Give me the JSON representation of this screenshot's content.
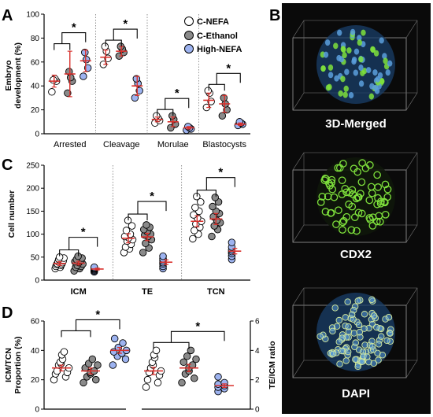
{
  "colors": {
    "c_nefa": "#ffffff",
    "c_ethanol": "#8a8a8a",
    "high_nefa": "#9db3f0",
    "error_bar": "#d9302c",
    "axis": "#000000",
    "image_bg": "#0a0a0a",
    "dapi": "#5b9fdc",
    "cdx2": "#7ee03c"
  },
  "legend": [
    "C-NEFA",
    "C-Ethanol",
    "High-NEFA"
  ],
  "chart_data": [
    {
      "panel": "A",
      "type": "scatter",
      "ylabel": "Embryo development (%)",
      "ylim": [
        0,
        100
      ],
      "yticks": [
        0,
        20,
        40,
        60,
        80,
        100
      ],
      "categories": [
        "Arrested",
        "Cleavage",
        "Morulae",
        "Blastocysts"
      ],
      "series": [
        {
          "name": "C-NEFA",
          "points": [
            [
              35,
              44,
              46,
              45
            ],
            [
              58,
              63,
              69,
              73
            ],
            [
              9,
              11,
              13,
              15
            ],
            [
              22,
              27,
              34,
              36
            ]
          ],
          "mean": [
            44,
            64,
            12,
            28
          ],
          "sd": [
            5,
            6,
            2,
            6
          ]
        },
        {
          "name": "C-Ethanol",
          "points": [
            [
              34,
              44,
              47,
              52
            ],
            [
              65,
              68,
              71,
              73
            ],
            [
              5,
              8,
              12,
              15
            ],
            [
              15,
              20,
              25,
              30
            ]
          ],
          "mean": [
            50,
            69,
            10,
            25
          ],
          "sd": [
            19,
            4,
            4,
            7
          ]
        },
        {
          "name": "High-NEFA",
          "points": [
            [
              48,
              55,
              62,
              68
            ],
            [
              30,
              36,
              42,
              46
            ],
            [
              3,
              4,
              5,
              6
            ],
            [
              7,
              8,
              9,
              10
            ]
          ],
          "mean": [
            61,
            40,
            5,
            8
          ],
          "sd": [
            9,
            8,
            1,
            1
          ]
        }
      ],
      "significance": [
        "*",
        "*",
        "*",
        "*"
      ]
    },
    {
      "panel": "C",
      "type": "scatter",
      "ylabel": "Cell number",
      "ylim": [
        0,
        250
      ],
      "yticks": [
        0,
        50,
        100,
        150,
        200,
        250
      ],
      "categories": [
        "ICM",
        "TE",
        "TCN"
      ],
      "series": [
        {
          "name": "C-NEFA",
          "points": [
            [
              25,
              28,
              30,
              32,
              34,
              35,
              36,
              38,
              40,
              42,
              45,
              48,
              50
            ],
            [
              60,
              68,
              72,
              78,
              85,
              88,
              92,
              95,
              100,
              108,
              118,
              130
            ],
            [
              90,
              100,
              108,
              115,
              122,
              128,
              135,
              142,
              150,
              158,
              170,
              182
            ]
          ],
          "mean": [
            36,
            91,
            128
          ],
          "sd": [
            4,
            10,
            12
          ]
        },
        {
          "name": "C-Ethanol",
          "points": [
            [
              20,
              25,
              28,
              30,
              32,
              35,
              38,
              40,
              42,
              45,
              48,
              52
            ],
            [
              60,
              70,
              80,
              88,
              95,
              98,
              100,
              105,
              110,
              115,
              120
            ],
            [
              95,
              110,
              118,
              125,
              130,
              138,
              145,
              150,
              160,
              170,
              180
            ]
          ],
          "mean": [
            37,
            94,
            133
          ],
          "sd": [
            4,
            8,
            12
          ]
        },
        {
          "name": "High-NEFA",
          "points": [
            [
              18,
              20,
              22,
              24,
              25,
              26,
              28
            ],
            [
              25,
              30,
              35,
              38,
              42,
              46,
              52
            ],
            [
              45,
              52,
              58,
              62,
              66,
              72,
              82
            ]
          ],
          "mean": [
            24,
            39,
            63
          ],
          "sd": [
            2,
            5,
            6
          ]
        }
      ],
      "significance": [
        "*",
        "*",
        "*"
      ]
    },
    {
      "panel": "D",
      "type": "scatter",
      "ylabel": "ICM/TCN Proportion (%)",
      "ylabel_right": "TE/ICM ratio",
      "ylim": [
        0,
        60
      ],
      "yticks": [
        0,
        20,
        40,
        60
      ],
      "ylim_right": [
        0,
        6
      ],
      "yticks_right": [
        0,
        2,
        4,
        6
      ],
      "groups": [
        {
          "axis": "left",
          "series": [
            {
              "name": "C-NEFA",
              "points": [
                20,
                22,
                24,
                25,
                26,
                28,
                30,
                31,
                32,
                34,
                37,
                39
              ],
              "mean": 28,
              "sd": 2
            },
            {
              "name": "C-Ethanol",
              "points": [
                18,
                20,
                22,
                24,
                25,
                26,
                28,
                30,
                31,
                34
              ],
              "mean": 26,
              "sd": 2
            },
            {
              "name": "High-NEFA",
              "points": [
                30,
                34,
                36,
                38,
                39,
                40,
                42,
                45,
                48
              ],
              "mean": 40,
              "sd": 2
            }
          ]
        },
        {
          "axis": "right",
          "series": [
            {
              "name": "C-NEFA",
              "points": [
                1.5,
                1.8,
                2.0,
                2.3,
                2.5,
                2.6,
                2.8,
                3.0,
                3.2,
                3.5,
                3.7,
                4.0
              ],
              "mean": 2.6,
              "sd": 0.25
            },
            {
              "name": "C-Ethanol",
              "points": [
                1.8,
                2.1,
                2.4,
                2.6,
                2.8,
                3.0,
                3.2,
                3.4,
                3.6,
                4.0
              ],
              "mean": 2.8,
              "sd": 0.25
            },
            {
              "name": "High-NEFA",
              "points": [
                1.2,
                1.4,
                1.5,
                1.6,
                1.7,
                1.8,
                2.2
              ],
              "mean": 1.6,
              "sd": 0.12
            }
          ]
        }
      ],
      "significance": [
        "*",
        "*"
      ]
    }
  ],
  "panel_b": {
    "label": "B",
    "images": [
      {
        "caption": "3D-Merged"
      },
      {
        "caption": "CDX2"
      },
      {
        "caption": "DAPI"
      }
    ]
  }
}
